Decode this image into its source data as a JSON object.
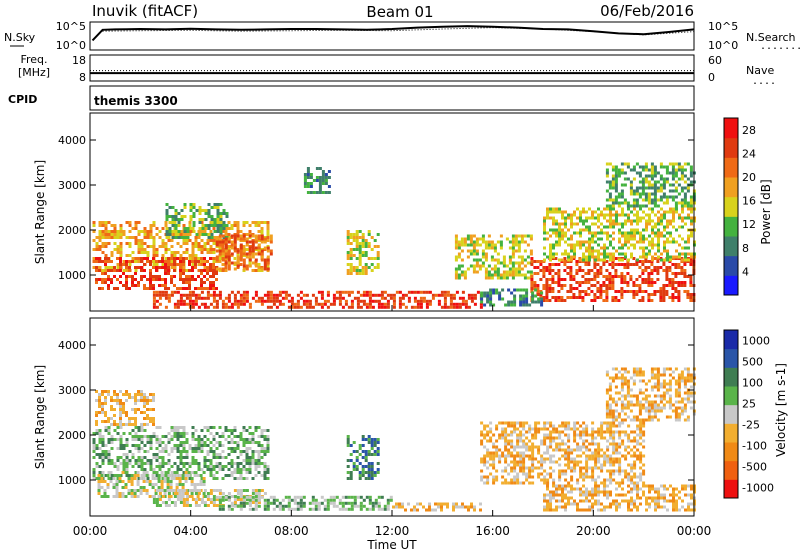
{
  "header": {
    "site": "Inuvik (fitACF)",
    "beam": "Beam 01",
    "date": "06/Feb/2016"
  },
  "nsky_panel": {
    "left_label": "N.Sky",
    "left_ticks": [
      "10^5",
      "10^0"
    ],
    "right_ticks": [
      "10^5",
      "10^0"
    ],
    "right_label": "N.Search",
    "right_legend_line": "........"
  },
  "freq_panel": {
    "left_label_line1": "Freq.",
    "left_label_line2": "[MHz]",
    "left_ticks": [
      "18",
      "8"
    ],
    "right_ticks": [
      "60",
      "0"
    ],
    "right_label": "Nave",
    "right_legend_line": "...."
  },
  "cpid_panel": {
    "label": "CPID",
    "value": "themis 3300"
  },
  "y_axis": {
    "label": "Slant Range [km]",
    "ticks": [
      1000,
      2000,
      3000,
      4000
    ],
    "ylim": [
      200,
      4600
    ]
  },
  "x_axis": {
    "label": "Time UT",
    "ticks": [
      "00:00",
      "04:00",
      "08:00",
      "12:00",
      "16:00",
      "20:00",
      "00:00"
    ],
    "xlim_hours": [
      0,
      24
    ]
  },
  "colors": {
    "power": [
      "#1a1aff",
      "#2a4aa8",
      "#3f7f6a",
      "#44b23f",
      "#d8d21c",
      "#f0a020",
      "#ef6a16",
      "#e03a10",
      "#f01010"
    ],
    "velocity": [
      "#ee1010",
      "#f06010",
      "#f08a16",
      "#f2ae30",
      "#c8c8c8",
      "#5ab44a",
      "#3f7d52",
      "#2a55a8",
      "#1a2aa8"
    ]
  },
  "chart_data": [
    {
      "type": "line",
      "title": "N.Sky",
      "series": [
        {
          "name": "N.Sky",
          "x": [
            0.1,
            0.5,
            1,
            2,
            3,
            4,
            5,
            6,
            7,
            8,
            9,
            10,
            11,
            12,
            13,
            14,
            15,
            16,
            17,
            18,
            19,
            20,
            21,
            22,
            23,
            24
          ],
          "values": [
            0.3,
            0.78,
            0.8,
            0.82,
            0.8,
            0.83,
            0.8,
            0.78,
            0.8,
            0.82,
            0.82,
            0.8,
            0.78,
            0.82,
            0.88,
            0.92,
            0.95,
            0.92,
            0.88,
            0.82,
            0.8,
            0.72,
            0.62,
            0.58,
            0.68,
            0.8
          ]
        },
        {
          "name": "N.Search",
          "x": [
            0.5,
            2,
            4,
            6,
            8,
            10,
            12,
            14,
            16,
            18,
            20,
            22,
            24
          ],
          "values": [
            0.72,
            0.74,
            0.76,
            0.72,
            0.74,
            0.76,
            0.74,
            0.82,
            0.88,
            0.82,
            0.7,
            0.55,
            0.7
          ]
        }
      ],
      "ylim": [
        0,
        1
      ]
    },
    {
      "type": "line",
      "title": "Freq. [MHz]",
      "series": [
        {
          "name": "Freq.",
          "x": [
            0,
            2,
            4,
            6,
            8,
            10,
            12,
            14,
            16,
            18,
            20,
            22,
            24
          ],
          "values": [
            10.8,
            10.8,
            10.8,
            10.8,
            10.8,
            10.8,
            10.8,
            10.8,
            10.8,
            10.8,
            10.8,
            10.8,
            10.8
          ]
        },
        {
          "name": "Nave",
          "x": [
            0,
            2,
            4,
            6,
            8,
            10,
            12,
            14,
            16,
            18,
            20,
            22,
            24
          ],
          "values": [
            24,
            24,
            24,
            24,
            24,
            24,
            24,
            24,
            24,
            24,
            24,
            24,
            24
          ]
        }
      ],
      "ylim": [
        8,
        18
      ]
    },
    {
      "type": "heatmap",
      "title": "Power [dB]",
      "colorbar_ticks": [
        4,
        8,
        12,
        16,
        20,
        24,
        28
      ],
      "scale": [
        0,
        30
      ],
      "patches": [
        {
          "t": [
            0.1,
            7.1
          ],
          "r": [
            1100,
            2200
          ],
          "value": 18
        },
        {
          "t": [
            0.2,
            5.0
          ],
          "r": [
            700,
            1400
          ],
          "value": 27
        },
        {
          "t": [
            3.0,
            5.5
          ],
          "r": [
            1800,
            2600
          ],
          "value": 12
        },
        {
          "t": [
            5.0,
            7.2
          ],
          "r": [
            1100,
            1900
          ],
          "value": 22
        },
        {
          "t": [
            2.5,
            15.5
          ],
          "r": [
            300,
            650
          ],
          "value": 25
        },
        {
          "t": [
            10.2,
            11.5
          ],
          "r": [
            1000,
            2000
          ],
          "value": 16
        },
        {
          "t": [
            8.5,
            9.5
          ],
          "r": [
            2800,
            3400
          ],
          "value": 6
        },
        {
          "t": [
            14.5,
            17.5
          ],
          "r": [
            900,
            1900
          ],
          "value": 14
        },
        {
          "t": [
            17.5,
            24.0
          ],
          "r": [
            400,
            1400
          ],
          "value": 27
        },
        {
          "t": [
            18.0,
            24.0
          ],
          "r": [
            1300,
            2500
          ],
          "value": 15
        },
        {
          "t": [
            20.5,
            24.0
          ],
          "r": [
            2500,
            3500
          ],
          "value": 10
        },
        {
          "t": [
            15.5,
            18.0
          ],
          "r": [
            300,
            700
          ],
          "value": 8
        }
      ]
    },
    {
      "type": "heatmap",
      "title": "Velocity [m s-1]",
      "colorbar_ticks": [
        1000,
        500,
        100,
        25,
        -25,
        -100,
        -500,
        -1000
      ],
      "scale": [
        -1000,
        1000
      ],
      "patches": [
        {
          "t": [
            0.1,
            7.1
          ],
          "r": [
            1000,
            2200
          ],
          "value": 200
        },
        {
          "t": [
            0.3,
            4.5
          ],
          "r": [
            600,
            1200
          ],
          "value": -120
        },
        {
          "t": [
            2.5,
            7.0
          ],
          "r": [
            400,
            800
          ],
          "value": 0
        },
        {
          "t": [
            5.0,
            12.0
          ],
          "r": [
            350,
            650
          ],
          "value": 250
        },
        {
          "t": [
            10.2,
            11.5
          ],
          "r": [
            1000,
            2000
          ],
          "value": 400
        },
        {
          "t": [
            12.0,
            15.5
          ],
          "r": [
            300,
            500
          ],
          "value": -150
        },
        {
          "t": [
            15.5,
            22.0
          ],
          "r": [
            900,
            2300
          ],
          "value": -300
        },
        {
          "t": [
            18.0,
            24.0
          ],
          "r": [
            300,
            900
          ],
          "value": -200
        },
        {
          "t": [
            20.5,
            24.0
          ],
          "r": [
            2300,
            3500
          ],
          "value": -250
        },
        {
          "t": [
            0.2,
            2.5
          ],
          "r": [
            2200,
            3000
          ],
          "value": -150
        }
      ]
    }
  ]
}
